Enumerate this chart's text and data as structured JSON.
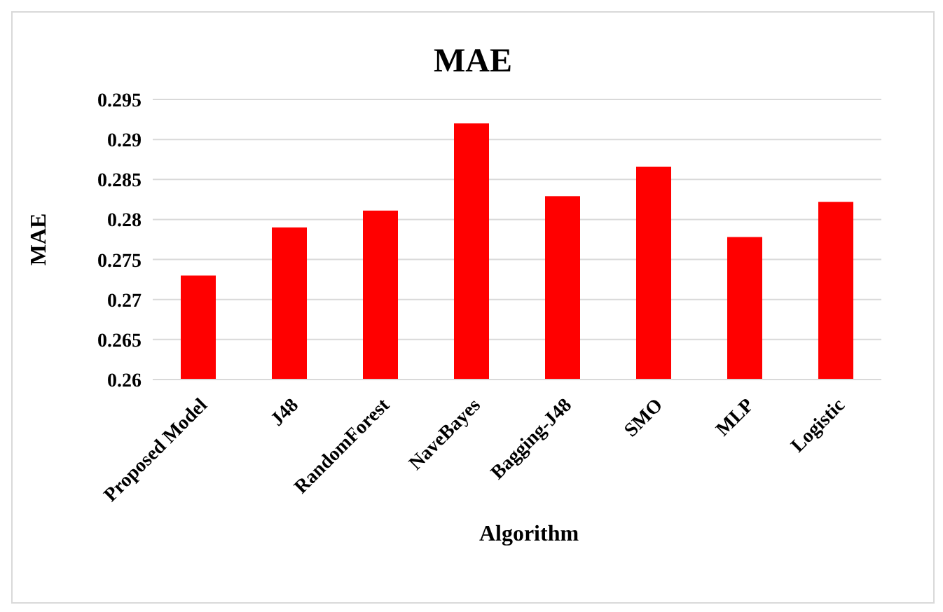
{
  "chart_data": {
    "type": "bar",
    "title": "MAE",
    "xlabel": "Algorithm",
    "ylabel": "MAE",
    "categories": [
      "Proposed Model",
      "J48",
      "RandomForest",
      "NaveBayes",
      "Bagging-J48",
      "SMO",
      "MLP",
      "Logistic"
    ],
    "values": [
      0.273,
      0.279,
      0.2811,
      0.292,
      0.2829,
      0.2866,
      0.2778,
      0.2822
    ],
    "color": "#ff0000",
    "ylim": [
      0.26,
      0.295
    ],
    "yticks": [
      0.26,
      0.265,
      0.27,
      0.275,
      0.28,
      0.285,
      0.29,
      0.295
    ],
    "grid": "y",
    "legend": false
  }
}
